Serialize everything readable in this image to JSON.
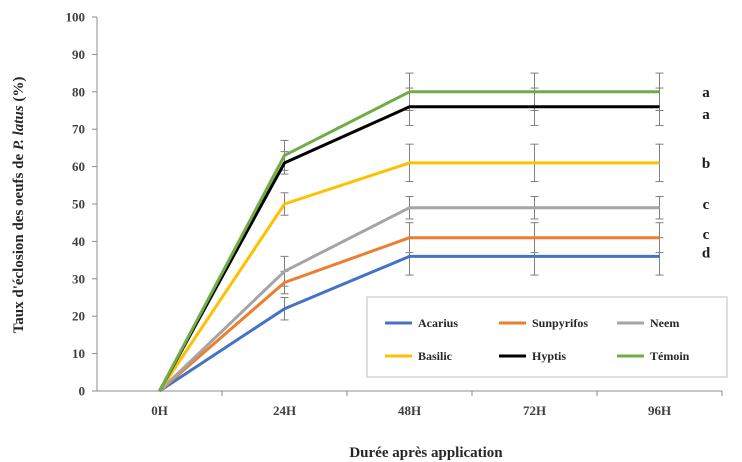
{
  "chart_data": {
    "type": "line",
    "xlabel": "Durée après application",
    "ylabel_prefix": "Taux d'éclosion des oeufs de ",
    "ylabel_species": "P. latus",
    "ylabel_suffix": " (%)",
    "categories": [
      "0H",
      "24H",
      "48H",
      "72H",
      "96H"
    ],
    "ylim": [
      0,
      100
    ],
    "yticks": [
      0,
      10,
      20,
      30,
      40,
      50,
      60,
      70,
      80,
      90,
      100
    ],
    "grid": false,
    "legend_position": "bottom-right",
    "series": [
      {
        "name": "Acarius",
        "color": "#4472C4",
        "values": [
          0,
          22,
          36,
          36,
          36
        ],
        "errors": [
          0,
          3,
          5,
          5,
          5
        ]
      },
      {
        "name": "Sunpyrifos",
        "color": "#ED7D31",
        "values": [
          0,
          29,
          41,
          41,
          41
        ],
        "errors": [
          0,
          3,
          4,
          4,
          4
        ]
      },
      {
        "name": "Neem",
        "color": "#A5A5A5",
        "values": [
          0,
          32,
          49,
          49,
          49
        ],
        "errors": [
          0,
          4,
          3,
          3,
          3
        ]
      },
      {
        "name": "Basilic",
        "color": "#FFC000",
        "values": [
          0,
          50,
          61,
          61,
          61
        ],
        "errors": [
          0,
          3,
          5,
          5,
          5
        ]
      },
      {
        "name": "Hyptis",
        "color": "#000000",
        "values": [
          0,
          61,
          76,
          76,
          76
        ],
        "errors": [
          0,
          3,
          5,
          5,
          5
        ]
      },
      {
        "name": "Témoin",
        "color": "#70AD47",
        "values": [
          0,
          63,
          80,
          80,
          80
        ],
        "errors": [
          0,
          4,
          5,
          5,
          5
        ]
      }
    ],
    "significance_labels": [
      {
        "text": "a",
        "value": 80
      },
      {
        "text": "a",
        "value": 74
      },
      {
        "text": "b",
        "value": 61
      },
      {
        "text": "c",
        "value": 50
      },
      {
        "text": "c",
        "value": 42
      },
      {
        "text": "d",
        "value": 37
      }
    ]
  }
}
